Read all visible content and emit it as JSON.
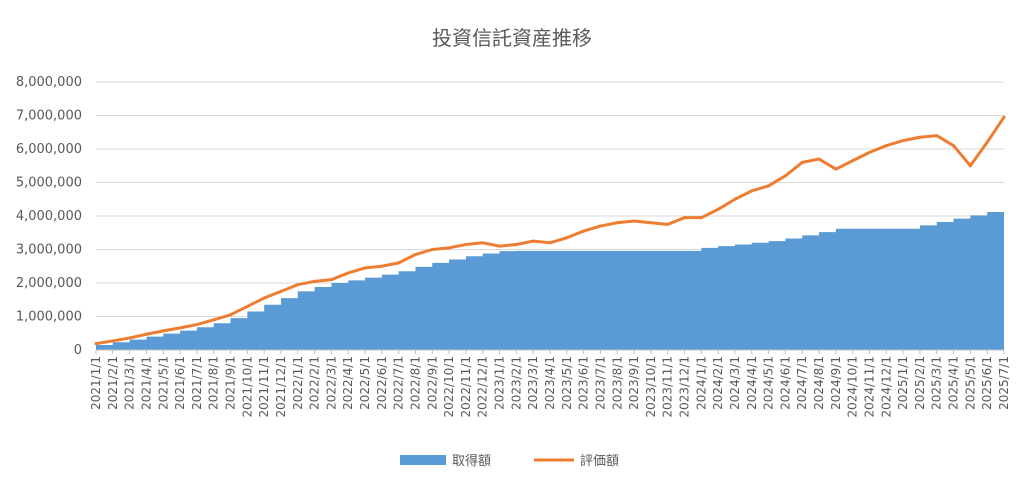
{
  "chart_data": {
    "type": "line",
    "title": "投資信託資産推移",
    "xlabel": "",
    "ylabel": "",
    "ylim": [
      0,
      8000000
    ],
    "yticks": [
      "0",
      "1,000,000",
      "2,000,000",
      "3,000,000",
      "4,000,000",
      "5,000,000",
      "6,000,000",
      "7,000,000",
      "8,000,000"
    ],
    "grid": true,
    "legend_position": "bottom",
    "categories": [
      "2021/1/1",
      "2021/2/1",
      "2021/3/1",
      "2021/4/1",
      "2021/5/1",
      "2021/6/1",
      "2021/7/1",
      "2021/8/1",
      "2021/9/1",
      "2021/10/1",
      "2021/11/1",
      "2021/12/1",
      "2022/1/1",
      "2022/2/1",
      "2022/3/1",
      "2022/4/1",
      "2022/5/1",
      "2022/6/1",
      "2022/7/1",
      "2022/8/1",
      "2022/9/1",
      "2022/10/1",
      "2022/11/1",
      "2022/12/1",
      "2023/1/1",
      "2023/2/1",
      "2023/3/1",
      "2023/4/1",
      "2023/5/1",
      "2023/6/1",
      "2023/7/1",
      "2023/8/1",
      "2023/9/1",
      "2023/10/1",
      "2023/11/1",
      "2023/12/1",
      "2024/1/1",
      "2024/2/1",
      "2024/3/1",
      "2024/4/1",
      "2024/5/1",
      "2024/6/1",
      "2024/7/1",
      "2024/8/1",
      "2024/9/1",
      "2024/10/1",
      "2024/11/1",
      "2024/12/1",
      "2025/1/1",
      "2025/2/1",
      "2025/3/1",
      "2025/4/1",
      "2025/5/1",
      "2025/6/1",
      "2025/7/1"
    ],
    "series": [
      {
        "name": "取得額",
        "kind": "area",
        "color": "#5b9bd5",
        "values": [
          150000,
          230000,
          310000,
          400000,
          490000,
          580000,
          680000,
          800000,
          950000,
          1150000,
          1350000,
          1550000,
          1750000,
          1880000,
          2000000,
          2080000,
          2160000,
          2250000,
          2350000,
          2480000,
          2600000,
          2700000,
          2800000,
          2880000,
          2950000,
          2960000,
          2960000,
          2960000,
          2960000,
          2960000,
          2960000,
          2960000,
          2960000,
          2960000,
          2960000,
          2960000,
          3050000,
          3100000,
          3150000,
          3200000,
          3250000,
          3330000,
          3420000,
          3520000,
          3620000,
          3620000,
          3620000,
          3620000,
          3620000,
          3720000,
          3820000,
          3920000,
          4020000,
          4120000,
          4220000
        ]
      },
      {
        "name": "評価額",
        "kind": "line",
        "color": "#ed7d31",
        "values": [
          190000,
          270000,
          360000,
          470000,
          570000,
          660000,
          760000,
          900000,
          1050000,
          1300000,
          1550000,
          1750000,
          1950000,
          2050000,
          2100000,
          2300000,
          2450000,
          2500000,
          2600000,
          2850000,
          3000000,
          3050000,
          3150000,
          3200000,
          3100000,
          3150000,
          3250000,
          3200000,
          3350000,
          3550000,
          3700000,
          3800000,
          3850000,
          3800000,
          3750000,
          3950000,
          3950000,
          4200000,
          4500000,
          4750000,
          4900000,
          5200000,
          5600000,
          5700000,
          5400000,
          5650000,
          5900000,
          6100000,
          6250000,
          6350000,
          6400000,
          6100000,
          5500000,
          6200000,
          6950000
        ]
      }
    ]
  }
}
